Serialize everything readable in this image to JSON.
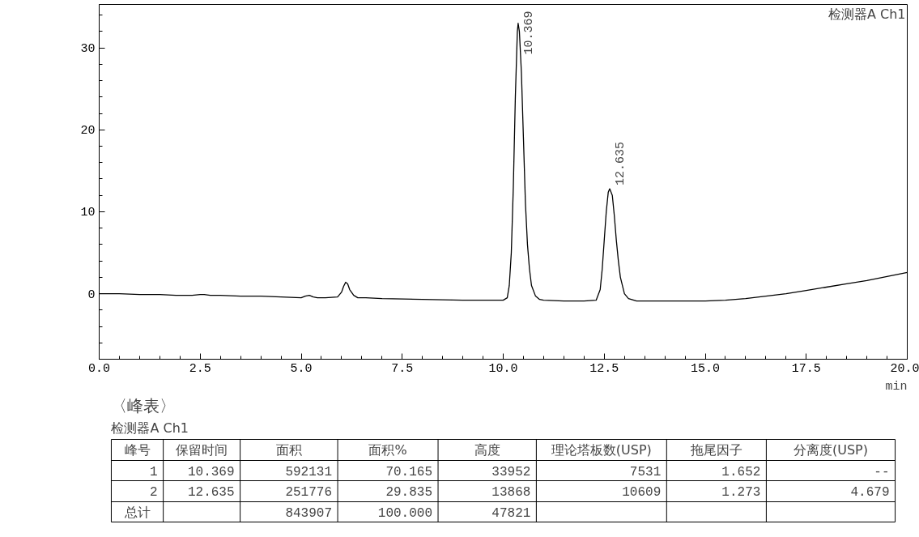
{
  "chart_data": {
    "type": "line",
    "xlabel": "min",
    "series": [
      {
        "color": "#000000",
        "x": [
          0.0,
          0.5,
          1.0,
          1.5,
          1.9,
          2.3,
          2.5,
          2.6,
          2.75,
          3.0,
          3.5,
          4.0,
          4.5,
          5.0,
          5.1,
          5.2,
          5.3,
          5.4,
          5.6,
          5.9,
          6.0,
          6.05,
          6.1,
          6.15,
          6.2,
          6.3,
          6.4,
          6.6,
          7.0,
          8.0,
          9.0,
          9.8,
          10.0,
          10.1,
          10.15,
          10.2,
          10.25,
          10.3,
          10.35,
          10.369,
          10.4,
          10.45,
          10.5,
          10.55,
          10.6,
          10.65,
          10.7,
          10.8,
          10.9,
          11.0,
          11.5,
          12.0,
          12.3,
          12.4,
          12.45,
          12.5,
          12.55,
          12.6,
          12.635,
          12.7,
          12.75,
          12.8,
          12.85,
          12.9,
          13.0,
          13.1,
          13.3,
          14.0,
          15.0,
          15.5,
          16.0,
          16.5,
          17.0,
          17.5,
          18.0,
          18.5,
          19.0,
          19.5,
          20.0
        ],
        "values": [
          0.0,
          0.0,
          -0.1,
          -0.1,
          -0.2,
          -0.2,
          -0.1,
          -0.1,
          -0.2,
          -0.2,
          -0.3,
          -0.3,
          -0.4,
          -0.5,
          -0.3,
          -0.2,
          -0.4,
          -0.5,
          -0.5,
          -0.4,
          0.2,
          0.9,
          1.4,
          1.2,
          0.5,
          -0.2,
          -0.5,
          -0.5,
          -0.6,
          -0.7,
          -0.8,
          -0.8,
          -0.8,
          -0.5,
          1.0,
          5.0,
          13.0,
          24.0,
          32.0,
          33.0,
          32.0,
          27.0,
          19.0,
          11.0,
          6.0,
          3.0,
          1.0,
          -0.3,
          -0.7,
          -0.8,
          -0.9,
          -0.9,
          -0.8,
          0.5,
          3.0,
          6.5,
          10.0,
          12.4,
          12.8,
          12.0,
          9.5,
          6.5,
          4.0,
          2.0,
          0.0,
          -0.6,
          -0.9,
          -0.9,
          -0.9,
          -0.8,
          -0.6,
          -0.3,
          0.0,
          0.4,
          0.8,
          1.2,
          1.6,
          2.1,
          2.6
        ]
      }
    ],
    "xlim": [
      0,
      20
    ],
    "ylim": [
      -8,
      35.3
    ],
    "xticks": [
      {
        "value": 0,
        "label": "0.0"
      },
      2.5,
      {
        "value": 5,
        "label": "5.0"
      },
      7.5,
      {
        "value": 10,
        "label": "10.0"
      },
      12.5,
      {
        "value": 15,
        "label": "15.0"
      },
      17.5,
      {
        "value": 20,
        "label": "20.0"
      }
    ],
    "yticks": [
      0,
      10,
      20,
      30
    ],
    "grid": false,
    "marker": "none",
    "line_style": "solid",
    "annotations": [
      "检测器A Ch1",
      {
        "text": "10.369",
        "x": 10.369,
        "y": 33.0
      },
      {
        "text": "12.635",
        "x": 12.635,
        "y": 12.8
      },
      "〈峰表〉",
      "检测器A Ch1",
      "峰号",
      "保留时间",
      "面积",
      "面积%",
      "高度",
      "理论塔板数(USP)",
      "拖尾因子",
      "分离度(USP)",
      "1",
      "10.369",
      "592131",
      "70.165",
      "33952",
      "7531",
      "1.652",
      "--",
      "2",
      "12.635",
      "251776",
      "29.835",
      "13868",
      "10609",
      "1.273",
      "4.679",
      "总计",
      "843907",
      "100.000",
      "47821"
    ]
  }
}
